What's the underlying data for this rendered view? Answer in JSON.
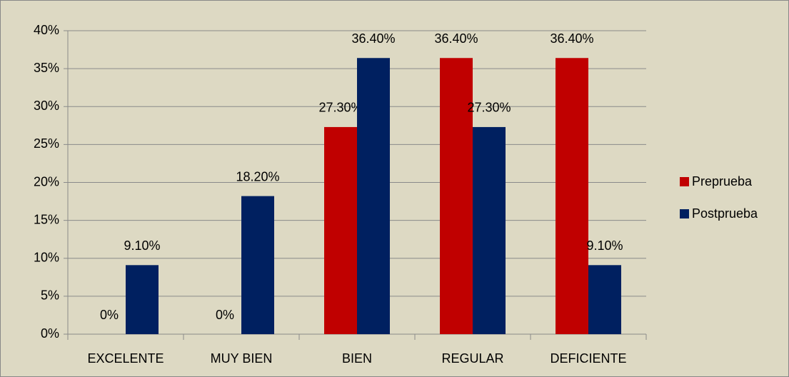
{
  "chart_data": {
    "type": "bar",
    "categories": [
      "EXCELENTE",
      "MUY BIEN",
      "BIEN",
      "REGULAR",
      "DEFICIENTE"
    ],
    "series": [
      {
        "name": "Preprueba",
        "color": "#c00000",
        "values": [
          0,
          0,
          27.3,
          36.4,
          36.4
        ],
        "value_labels": [
          "0%",
          "0%",
          "27.30%",
          "36.40%",
          "36.40%"
        ]
      },
      {
        "name": "Postprueba",
        "color": "#002060",
        "values": [
          9.1,
          18.2,
          36.4,
          27.3,
          9.1
        ],
        "value_labels": [
          "9.10%",
          "18.20%",
          "36.40%",
          "27.30%",
          "9.10%"
        ]
      }
    ],
    "ylim": [
      0,
      40
    ],
    "yticks": [
      {
        "value": 0,
        "label": "0%"
      },
      {
        "value": 5,
        "label": "5%"
      },
      {
        "value": 10,
        "label": "10%"
      },
      {
        "value": 15,
        "label": "15%"
      },
      {
        "value": 20,
        "label": "20%"
      },
      {
        "value": 25,
        "label": "25%"
      },
      {
        "value": 30,
        "label": "30%"
      },
      {
        "value": 35,
        "label": "35%"
      },
      {
        "value": 40,
        "label": "40%"
      }
    ],
    "grid": true,
    "legend": "right"
  }
}
